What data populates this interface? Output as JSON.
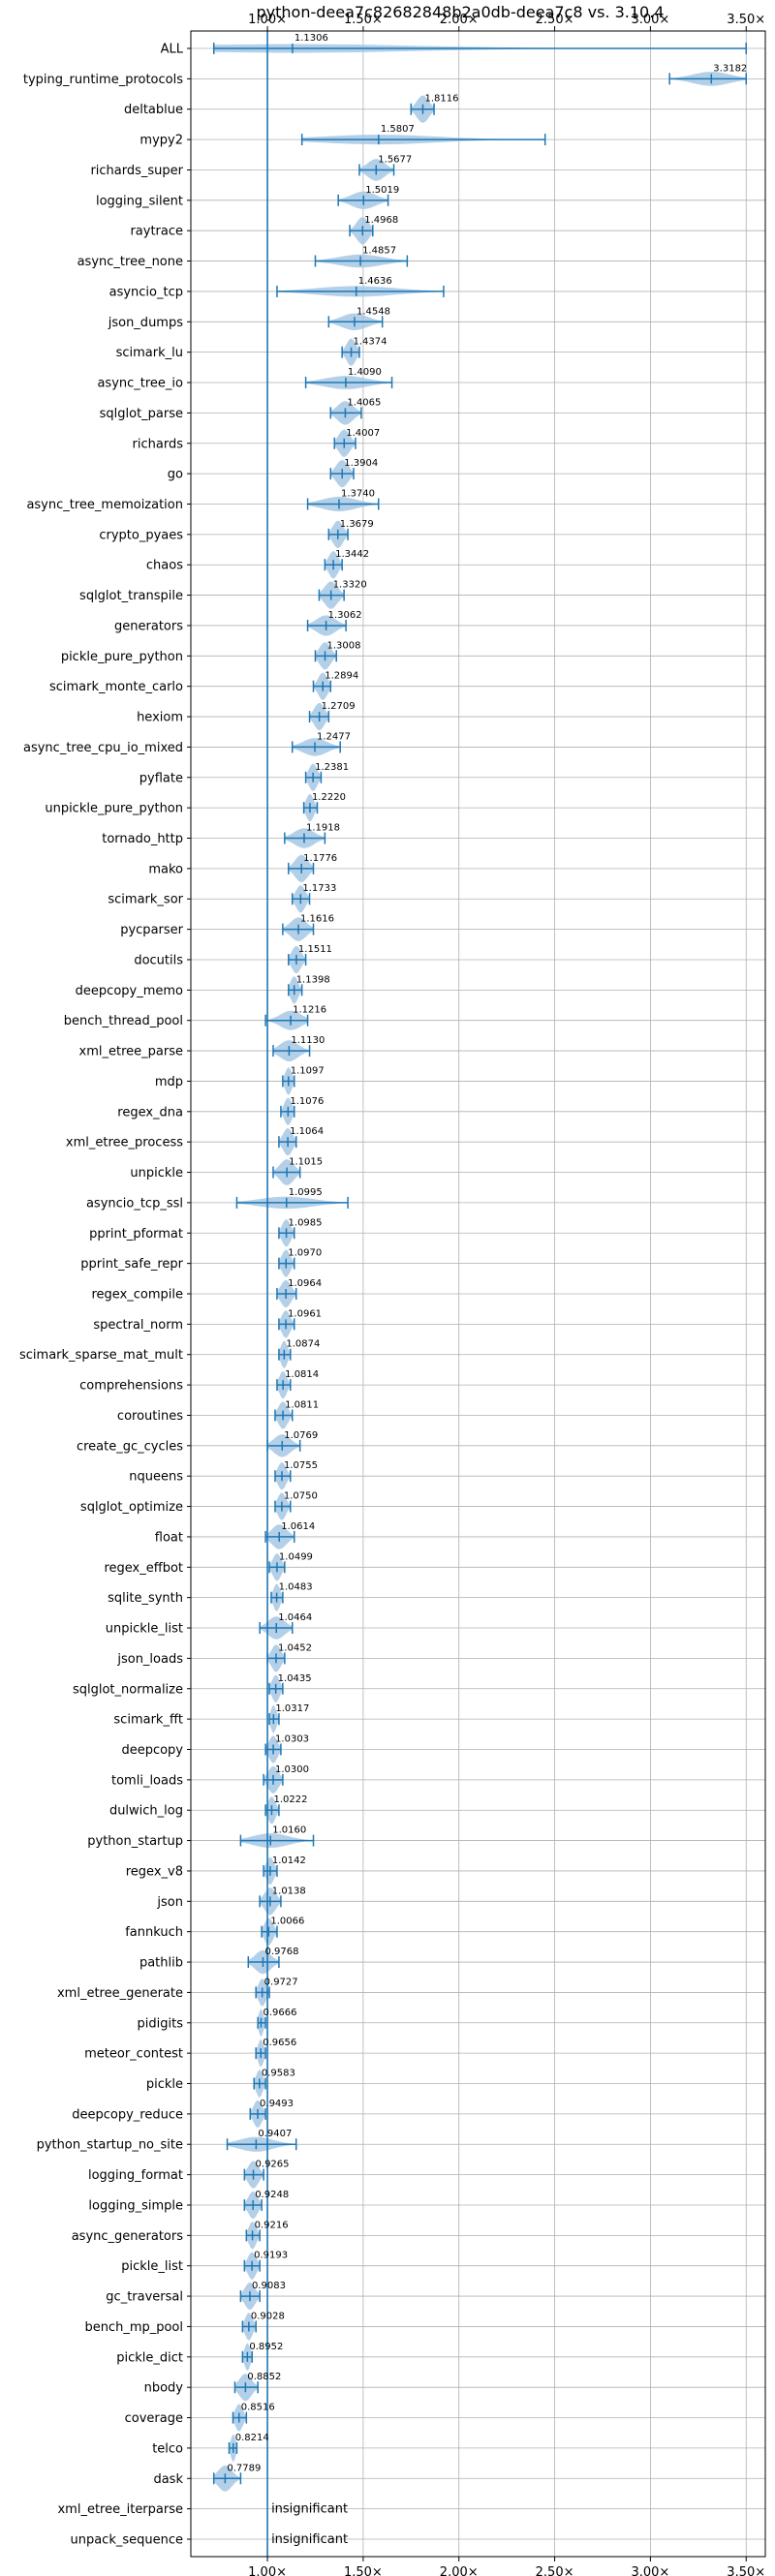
{
  "chart_data": {
    "type": "violin",
    "title": "python-deea7c82682848b2a0db-deea7c8 vs. 3.10.4",
    "xlim": [
      0.6,
      3.6
    ],
    "x_ticks": [
      1.0,
      1.5,
      2.0,
      2.5,
      3.0,
      3.5
    ],
    "x_tick_labels": [
      "1.00×",
      "1.50×",
      "2.00×",
      "2.50×",
      "3.00×",
      "3.50×"
    ],
    "x_ticks_top_and_bottom": true,
    "grid": true,
    "reference_line": 1.0,
    "colors": {
      "violin": "#a6c8e4",
      "line": "#1f77b4",
      "grid": "#b0b0b0"
    },
    "benchmarks": [
      {
        "name": "ALL",
        "value": 1.1306,
        "label": "1.1306",
        "min": 0.72,
        "max": 3.5
      },
      {
        "name": "typing_runtime_protocols",
        "value": 3.3182,
        "label": "3.3182",
        "min": 3.1,
        "max": 3.5
      },
      {
        "name": "deltablue",
        "value": 1.8116,
        "label": "1.8116",
        "min": 1.75,
        "max": 1.87
      },
      {
        "name": "mypy2",
        "value": 1.5807,
        "label": "1.5807",
        "min": 1.18,
        "max": 2.45
      },
      {
        "name": "richards_super",
        "value": 1.5677,
        "label": "1.5677",
        "min": 1.48,
        "max": 1.66
      },
      {
        "name": "logging_silent",
        "value": 1.5019,
        "label": "1.5019",
        "min": 1.37,
        "max": 1.63
      },
      {
        "name": "raytrace",
        "value": 1.4968,
        "label": "1.4968",
        "min": 1.43,
        "max": 1.55
      },
      {
        "name": "async_tree_none",
        "value": 1.4857,
        "label": "1.4857",
        "min": 1.25,
        "max": 1.73
      },
      {
        "name": "asyncio_tcp",
        "value": 1.4636,
        "label": "1.4636",
        "min": 1.05,
        "max": 1.92
      },
      {
        "name": "json_dumps",
        "value": 1.4548,
        "label": "1.4548",
        "min": 1.32,
        "max": 1.6
      },
      {
        "name": "scimark_lu",
        "value": 1.4374,
        "label": "1.4374",
        "min": 1.39,
        "max": 1.48
      },
      {
        "name": "async_tree_io",
        "value": 1.409,
        "label": "1.4090",
        "min": 1.2,
        "max": 1.65
      },
      {
        "name": "sqlglot_parse",
        "value": 1.4065,
        "label": "1.4065",
        "min": 1.33,
        "max": 1.49
      },
      {
        "name": "richards",
        "value": 1.4007,
        "label": "1.4007",
        "min": 1.35,
        "max": 1.46
      },
      {
        "name": "go",
        "value": 1.3904,
        "label": "1.3904",
        "min": 1.33,
        "max": 1.45
      },
      {
        "name": "async_tree_memoization",
        "value": 1.374,
        "label": "1.3740",
        "min": 1.21,
        "max": 1.58
      },
      {
        "name": "crypto_pyaes",
        "value": 1.3679,
        "label": "1.3679",
        "min": 1.32,
        "max": 1.42
      },
      {
        "name": "chaos",
        "value": 1.3442,
        "label": "1.3442",
        "min": 1.3,
        "max": 1.39
      },
      {
        "name": "sqlglot_transpile",
        "value": 1.332,
        "label": "1.3320",
        "min": 1.27,
        "max": 1.4
      },
      {
        "name": "generators",
        "value": 1.3062,
        "label": "1.3062",
        "min": 1.21,
        "max": 1.41
      },
      {
        "name": "pickle_pure_python",
        "value": 1.3008,
        "label": "1.3008",
        "min": 1.25,
        "max": 1.36
      },
      {
        "name": "scimark_monte_carlo",
        "value": 1.2894,
        "label": "1.2894",
        "min": 1.24,
        "max": 1.33
      },
      {
        "name": "hexiom",
        "value": 1.2709,
        "label": "1.2709",
        "min": 1.22,
        "max": 1.32
      },
      {
        "name": "async_tree_cpu_io_mixed",
        "value": 1.2477,
        "label": "1.2477",
        "min": 1.13,
        "max": 1.38
      },
      {
        "name": "pyflate",
        "value": 1.2381,
        "label": "1.2381",
        "min": 1.2,
        "max": 1.28
      },
      {
        "name": "unpickle_pure_python",
        "value": 1.222,
        "label": "1.2220",
        "min": 1.19,
        "max": 1.26
      },
      {
        "name": "tornado_http",
        "value": 1.1918,
        "label": "1.1918",
        "min": 1.09,
        "max": 1.3
      },
      {
        "name": "mako",
        "value": 1.1776,
        "label": "1.1776",
        "min": 1.11,
        "max": 1.24
      },
      {
        "name": "scimark_sor",
        "value": 1.1733,
        "label": "1.1733",
        "min": 1.13,
        "max": 1.22
      },
      {
        "name": "pycparser",
        "value": 1.1616,
        "label": "1.1616",
        "min": 1.08,
        "max": 1.24
      },
      {
        "name": "docutils",
        "value": 1.1511,
        "label": "1.1511",
        "min": 1.11,
        "max": 1.2
      },
      {
        "name": "deepcopy_memo",
        "value": 1.1398,
        "label": "1.1398",
        "min": 1.11,
        "max": 1.18
      },
      {
        "name": "bench_thread_pool",
        "value": 1.1216,
        "label": "1.1216",
        "min": 0.99,
        "max": 1.21
      },
      {
        "name": "xml_etree_parse",
        "value": 1.113,
        "label": "1.1130",
        "min": 1.03,
        "max": 1.22
      },
      {
        "name": "mdp",
        "value": 1.1097,
        "label": "1.1097",
        "min": 1.08,
        "max": 1.14
      },
      {
        "name": "regex_dna",
        "value": 1.1076,
        "label": "1.1076",
        "min": 1.07,
        "max": 1.14
      },
      {
        "name": "xml_etree_process",
        "value": 1.1064,
        "label": "1.1064",
        "min": 1.06,
        "max": 1.15
      },
      {
        "name": "unpickle",
        "value": 1.1015,
        "label": "1.1015",
        "min": 1.03,
        "max": 1.17
      },
      {
        "name": "asyncio_tcp_ssl",
        "value": 1.0995,
        "label": "1.0995",
        "min": 0.84,
        "max": 1.42
      },
      {
        "name": "pprint_pformat",
        "value": 1.0985,
        "label": "1.0985",
        "min": 1.06,
        "max": 1.14
      },
      {
        "name": "pprint_safe_repr",
        "value": 1.097,
        "label": "1.0970",
        "min": 1.06,
        "max": 1.14
      },
      {
        "name": "regex_compile",
        "value": 1.0964,
        "label": "1.0964",
        "min": 1.05,
        "max": 1.15
      },
      {
        "name": "spectral_norm",
        "value": 1.0961,
        "label": "1.0961",
        "min": 1.06,
        "max": 1.14
      },
      {
        "name": "scimark_sparse_mat_mult",
        "value": 1.0874,
        "label": "1.0874",
        "min": 1.06,
        "max": 1.12
      },
      {
        "name": "comprehensions",
        "value": 1.0814,
        "label": "1.0814",
        "min": 1.05,
        "max": 1.12
      },
      {
        "name": "coroutines",
        "value": 1.0811,
        "label": "1.0811",
        "min": 1.04,
        "max": 1.13
      },
      {
        "name": "create_gc_cycles",
        "value": 1.0769,
        "label": "1.0769",
        "min": 1.0,
        "max": 1.17
      },
      {
        "name": "nqueens",
        "value": 1.0755,
        "label": "1.0755",
        "min": 1.04,
        "max": 1.12
      },
      {
        "name": "sqlglot_optimize",
        "value": 1.075,
        "label": "1.0750",
        "min": 1.04,
        "max": 1.12
      },
      {
        "name": "float",
        "value": 1.0614,
        "label": "1.0614",
        "min": 0.99,
        "max": 1.14
      },
      {
        "name": "regex_effbot",
        "value": 1.0499,
        "label": "1.0499",
        "min": 1.01,
        "max": 1.09
      },
      {
        "name": "sqlite_synth",
        "value": 1.0483,
        "label": "1.0483",
        "min": 1.02,
        "max": 1.08
      },
      {
        "name": "unpickle_list",
        "value": 1.0464,
        "label": "1.0464",
        "min": 0.96,
        "max": 1.13
      },
      {
        "name": "json_loads",
        "value": 1.0452,
        "label": "1.0452",
        "min": 1.0,
        "max": 1.09
      },
      {
        "name": "sqlglot_normalize",
        "value": 1.0435,
        "label": "1.0435",
        "min": 1.01,
        "max": 1.08
      },
      {
        "name": "scimark_fft",
        "value": 1.0317,
        "label": "1.0317",
        "min": 1.01,
        "max": 1.06
      },
      {
        "name": "deepcopy",
        "value": 1.0303,
        "label": "1.0303",
        "min": 0.99,
        "max": 1.07
      },
      {
        "name": "tomli_loads",
        "value": 1.03,
        "label": "1.0300",
        "min": 0.98,
        "max": 1.08
      },
      {
        "name": "dulwich_log",
        "value": 1.0222,
        "label": "1.0222",
        "min": 0.99,
        "max": 1.06
      },
      {
        "name": "python_startup",
        "value": 1.016,
        "label": "1.0160",
        "min": 0.86,
        "max": 1.24
      },
      {
        "name": "regex_v8",
        "value": 1.0142,
        "label": "1.0142",
        "min": 0.98,
        "max": 1.05
      },
      {
        "name": "json",
        "value": 1.0138,
        "label": "1.0138",
        "min": 0.96,
        "max": 1.07
      },
      {
        "name": "fannkuch",
        "value": 1.0066,
        "label": "1.0066",
        "min": 0.97,
        "max": 1.05
      },
      {
        "name": "pathlib",
        "value": 0.9768,
        "label": "0.9768",
        "min": 0.9,
        "max": 1.06
      },
      {
        "name": "xml_etree_generate",
        "value": 0.9727,
        "label": "0.9727",
        "min": 0.94,
        "max": 1.01
      },
      {
        "name": "pidigits",
        "value": 0.9666,
        "label": "0.9666",
        "min": 0.95,
        "max": 0.99
      },
      {
        "name": "meteor_contest",
        "value": 0.9656,
        "label": "0.9656",
        "min": 0.94,
        "max": 0.99
      },
      {
        "name": "pickle",
        "value": 0.9583,
        "label": "0.9583",
        "min": 0.93,
        "max": 0.99
      },
      {
        "name": "deepcopy_reduce",
        "value": 0.9493,
        "label": "0.9493",
        "min": 0.91,
        "max": 0.99
      },
      {
        "name": "python_startup_no_site",
        "value": 0.9407,
        "label": "0.9407",
        "min": 0.79,
        "max": 1.15
      },
      {
        "name": "logging_format",
        "value": 0.9265,
        "label": "0.9265",
        "min": 0.88,
        "max": 0.98
      },
      {
        "name": "logging_simple",
        "value": 0.9248,
        "label": "0.9248",
        "min": 0.88,
        "max": 0.97
      },
      {
        "name": "async_generators",
        "value": 0.9216,
        "label": "0.9216",
        "min": 0.89,
        "max": 0.96
      },
      {
        "name": "pickle_list",
        "value": 0.9193,
        "label": "0.9193",
        "min": 0.88,
        "max": 0.96
      },
      {
        "name": "gc_traversal",
        "value": 0.9083,
        "label": "0.9083",
        "min": 0.86,
        "max": 0.96
      },
      {
        "name": "bench_mp_pool",
        "value": 0.9028,
        "label": "0.9028",
        "min": 0.87,
        "max": 0.94
      },
      {
        "name": "pickle_dict",
        "value": 0.8952,
        "label": "0.8952",
        "min": 0.87,
        "max": 0.92
      },
      {
        "name": "nbody",
        "value": 0.8852,
        "label": "0.8852",
        "min": 0.83,
        "max": 0.95
      },
      {
        "name": "coverage",
        "value": 0.8516,
        "label": "0.8516",
        "min": 0.82,
        "max": 0.89
      },
      {
        "name": "telco",
        "value": 0.8214,
        "label": "0.8214",
        "min": 0.8,
        "max": 0.84
      },
      {
        "name": "dask",
        "value": 0.7789,
        "label": "0.7789",
        "min": 0.72,
        "max": 0.86
      },
      {
        "name": "xml_etree_iterparse",
        "value": null,
        "label": "insignificant"
      },
      {
        "name": "unpack_sequence",
        "value": null,
        "label": "insignificant"
      }
    ]
  }
}
